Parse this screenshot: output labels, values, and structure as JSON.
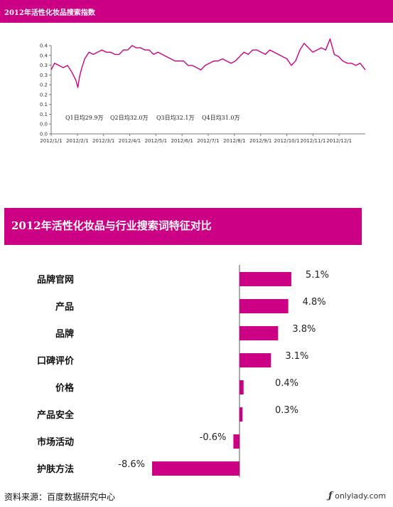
{
  "line_chart_title": "2012年活性化妆品搜索指数",
  "bar_chart_title": "2012年活性化妆品与行业搜索词特征对比",
  "source": "资料来源：百度数据研究中心",
  "watermark": "onlylady.com",
  "chart_data": [
    {
      "type": "line",
      "title": "2012年活性化妆品搜索指数",
      "ylim": [
        0,
        0.4
      ],
      "yticks": [
        "0.0",
        "0.0",
        "0.1",
        "0.1",
        "0.2",
        "0.2",
        "0.3",
        "0.3",
        "0.4",
        "0.4"
      ],
      "xticks": [
        "2012/1/1",
        "2012/2/1",
        "2012/3/1",
        "2012/4/1",
        "2012/5/1",
        "2012/6/1",
        "2012/7/1",
        "2012/8/1",
        "2012/9/1",
        "2012/10/1",
        "2012/11/1",
        "2012/12/1"
      ],
      "annotations": [
        "Q1日均29.9万",
        "Q2日均32.0万",
        "Q3日均32.1万",
        "Q4日均31.0万"
      ],
      "series": [
        {
          "color": "#cc0085",
          "x": [
            1,
            5,
            10,
            15,
            20,
            25,
            30,
            32,
            34,
            36,
            40,
            45,
            50,
            55,
            60,
            65,
            70,
            75,
            80,
            85,
            90,
            95,
            100,
            105,
            110,
            115,
            120,
            125,
            130,
            135,
            140,
            145,
            150,
            155,
            160,
            165,
            170,
            175,
            180,
            185,
            190,
            195,
            200,
            205,
            210,
            215,
            220,
            225,
            230,
            235,
            240,
            245,
            250,
            255,
            260,
            265,
            270,
            275,
            280,
            285,
            290,
            295,
            300,
            305,
            310,
            315,
            320,
            325,
            330,
            335,
            340,
            345,
            350,
            355,
            360,
            366
          ],
          "y": [
            0.29,
            0.32,
            0.31,
            0.3,
            0.31,
            0.28,
            0.24,
            0.21,
            0.26,
            0.29,
            0.34,
            0.37,
            0.36,
            0.37,
            0.38,
            0.37,
            0.37,
            0.36,
            0.36,
            0.38,
            0.38,
            0.4,
            0.39,
            0.39,
            0.38,
            0.38,
            0.36,
            0.37,
            0.36,
            0.35,
            0.34,
            0.33,
            0.33,
            0.33,
            0.31,
            0.31,
            0.3,
            0.29,
            0.31,
            0.32,
            0.33,
            0.33,
            0.34,
            0.33,
            0.32,
            0.33,
            0.35,
            0.37,
            0.36,
            0.38,
            0.38,
            0.37,
            0.36,
            0.38,
            0.37,
            0.36,
            0.35,
            0.34,
            0.31,
            0.33,
            0.38,
            0.41,
            0.39,
            0.37,
            0.38,
            0.39,
            0.38,
            0.43,
            0.36,
            0.35,
            0.33,
            0.32,
            0.32,
            0.31,
            0.32,
            0.29
          ]
        }
      ]
    },
    {
      "type": "bar",
      "orientation": "horizontal",
      "title": "2012年活性化妆品与行业搜索词特征对比",
      "categories": [
        "品牌官网",
        "产品",
        "品牌",
        "口碑评价",
        "价格",
        "产品安全",
        "市场活动",
        "护肤方法"
      ],
      "values": [
        5.1,
        4.8,
        3.8,
        3.1,
        0.4,
        0.3,
        -0.6,
        -8.6
      ],
      "value_labels": [
        "5.1%",
        "4.8%",
        "3.8%",
        "3.1%",
        "0.4%",
        "0.3%",
        "-0.6%",
        "-8.6%"
      ],
      "color": "#cc0085"
    }
  ]
}
